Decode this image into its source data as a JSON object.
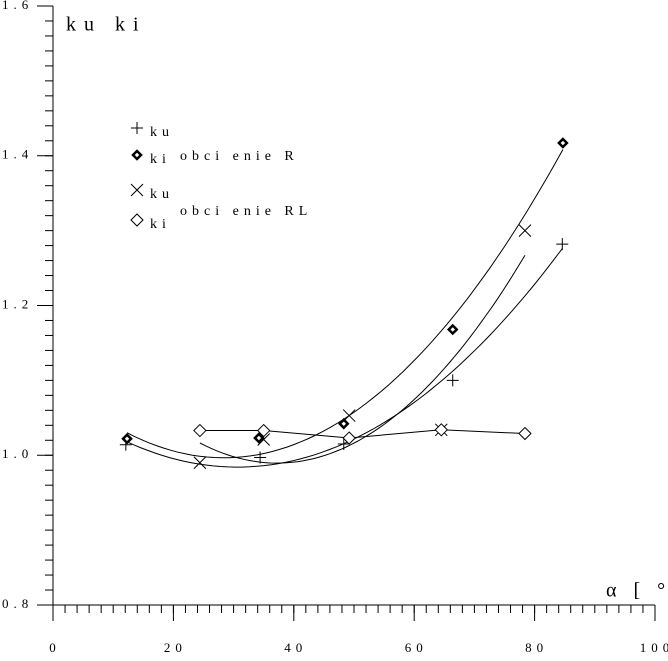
{
  "chart_data": {
    "type": "scatter",
    "ylabel": "ku ki",
    "xlabel": "α [ °]",
    "xlim": [
      0,
      100
    ],
    "xticks": [
      0,
      20,
      40,
      60,
      80,
      100
    ],
    "xminor": 2,
    "ylim": [
      0.8,
      1.6
    ],
    "yticks": [
      {
        "value": 0.8,
        "label": "0.8"
      },
      {
        "value": 1,
        "label": "1.0"
      },
      1.2,
      1.4,
      1.6
    ],
    "yminor": 0.02,
    "legend_groups": [
      "obci enie R",
      "obci enie RL"
    ],
    "series": [
      {
        "name": "ku",
        "marker": "plus",
        "fit": "quadratic",
        "color": "#000000",
        "x": [
          12.1,
          34.4,
          48.3,
          66.4,
          84.6
        ],
        "values": [
          1.014,
          0.997,
          1.015,
          1.1,
          1.282
        ]
      },
      {
        "name": "ki",
        "marker": "bold-diamond",
        "fit": "quadratic",
        "color": "#000000",
        "x": [
          12.3,
          34.2,
          48.3,
          66.4,
          84.7
        ],
        "values": [
          1.022,
          1.023,
          1.042,
          1.168,
          1.417
        ]
      },
      {
        "name": "ku",
        "marker": "cross",
        "fit": "quadratic",
        "color": "#000000",
        "x": [
          24.4,
          35,
          49.2,
          64.5,
          78.4
        ],
        "values": [
          0.99,
          1.021,
          1.053,
          1.034,
          1.3
        ]
      },
      {
        "name": "ki",
        "marker": "diamond",
        "fit": "polyline",
        "color": "#000000",
        "x": [
          24.4,
          35,
          49.2,
          64.5,
          78.4
        ],
        "values": [
          1.033,
          1.033,
          1.023,
          1.034,
          1.029
        ]
      }
    ]
  }
}
